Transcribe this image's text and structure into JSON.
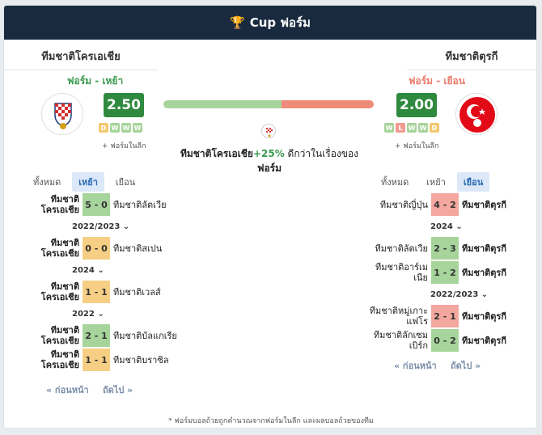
{
  "header": {
    "title": "Cup ฟอร์ม",
    "icon": "trophy-icon"
  },
  "left_team": {
    "name": "ทีมชาติโครเอเชีย",
    "form_label": "ฟอร์ม - เหย้า",
    "score": "2.50",
    "chips": [
      "D",
      "W",
      "W",
      "W"
    ],
    "league_note": "+ ฟอร์มในลีก",
    "tabs": [
      "ทั้งหมด",
      "เหย้า",
      "เยือน"
    ],
    "active_tab": 1,
    "rows": [
      {
        "home": "ทีมชาติโครเอเชีย",
        "score": "5 - 0",
        "away": "ทีมชาติลัตเวีย",
        "result": "W"
      },
      {
        "year": "2022/2023"
      },
      {
        "home": "ทีมชาติโครเอเชีย",
        "score": "0 - 0",
        "away": "ทีมชาติสเปน",
        "result": "D"
      },
      {
        "year": "2024"
      },
      {
        "home": "ทีมชาติโครเอเชีย",
        "score": "1 - 1",
        "away": "ทีมชาติเวลส์",
        "result": "D"
      },
      {
        "year": "2022"
      },
      {
        "home": "ทีมชาติโครเอเชีย",
        "score": "2 - 1",
        "away": "ทีมชาติบัลแกเรีย",
        "result": "W"
      },
      {
        "home": "ทีมชาติโครเอเชีย",
        "score": "1 - 1",
        "away": "ทีมชาติบราซิล",
        "result": "D"
      }
    ],
    "prev": "« ก่อนหน้า",
    "next": "ถัดไป »"
  },
  "right_team": {
    "name": "ทีมชาติตุรกี",
    "form_label": "ฟอร์ม - เยือน",
    "score": "2.00",
    "chips": [
      "W",
      "L",
      "W",
      "W",
      "D"
    ],
    "league_note": "+ ฟอร์มในลีก",
    "tabs": [
      "ทั้งหมด",
      "เหย้า",
      "เยือน"
    ],
    "active_tab": 2,
    "rows": [
      {
        "home": "ทีมชาติญี่ปุ่น",
        "score": "4 - 2",
        "away": "ทีมชาติตุรกี",
        "result": "L"
      },
      {
        "year": "2024"
      },
      {
        "home": "ทีมชาติลัตเวีย",
        "score": "2 - 3",
        "away": "ทีมชาติตุรกี",
        "result": "W"
      },
      {
        "home": "ทีมชาติอาร์เมเนีย",
        "score": "1 - 2",
        "away": "ทีมชาติตุรกี",
        "result": "W"
      },
      {
        "year": "2022/2023"
      },
      {
        "home": "ทีมชาติหมู่เกาะแฟโร",
        "score": "2 - 1",
        "away": "ทีมชาติตุรกี",
        "result": "L"
      },
      {
        "home": "ทีมชาติลักเซมเบิร์ก",
        "score": "0 - 2",
        "away": "ทีมชาติตุรกี",
        "result": "W"
      }
    ],
    "prev": "« ก่อนหน้า",
    "next": "ถัดไป »"
  },
  "comparison": {
    "bar_green_fraction": 0.56,
    "team": "ทีมชาติโครเอเชีย",
    "pct": "+25%",
    "text": " ดีกว่าในเรื่องของ",
    "tail": "ฟอร์ม"
  },
  "footnote": "* ฟอร์มบอลถ้วยถูกคำนวณจากฟอร์มในลีก และผลบอลถ้วยของทีม",
  "colors": {
    "header_bg": "#1a2a3e",
    "win": "#a6d49b",
    "draw": "#f6cf84",
    "loss": "#f3a79e",
    "score_box": "#2f8a3f"
  }
}
